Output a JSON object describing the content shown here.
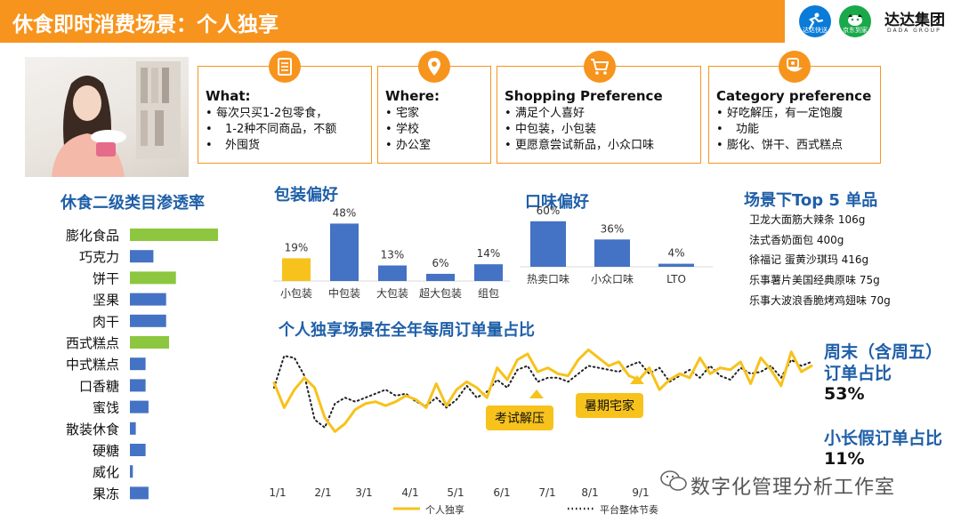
{
  "header": {
    "title": "休食即时消费场景：个人独享",
    "logos": [
      {
        "name": "dada-kuaisong-logo",
        "label": "达达快送",
        "color": "#0a7bd8"
      },
      {
        "name": "jd-daojia-logo",
        "label": "京东到家",
        "color": "#19a94a"
      }
    ],
    "brand": "达达集团",
    "brand_sub": "DADA GROUP"
  },
  "cards": [
    {
      "title": "What:",
      "icon": "document-icon",
      "items": [
        "每次只买1-2包零食，",
        "1-2种不同商品，不额",
        "外囤货"
      ]
    },
    {
      "title": "Where:",
      "icon": "location-pin-icon",
      "items": [
        "宅家",
        "学校",
        "办公室"
      ]
    },
    {
      "title": "Shopping Preference",
      "icon": "shopping-cart-icon",
      "items": [
        "满足个人喜好",
        "中包装，小包装",
        "更愿意尝试新品，小众口味"
      ]
    },
    {
      "title": "Category preference",
      "icon": "food-bowl-icon",
      "items": [
        "好吃解压，有一定饱腹",
        "功能",
        "膨化、饼干、西式糕点"
      ]
    }
  ],
  "penetration": {
    "title": "休食二级类目渗透率",
    "chart_data": {
      "type": "bar",
      "orientation": "horizontal",
      "categories": [
        "膨化食品",
        "巧克力",
        "饼干",
        "坚果",
        "肉干",
        "西式糕点",
        "中式糕点",
        "口香糖",
        "蜜饯",
        "散装休食",
        "硬糖",
        "威化",
        "果冻"
      ],
      "values": [
        90,
        24,
        47,
        37,
        37,
        40,
        16,
        16,
        19,
        6,
        16,
        3,
        19
      ],
      "highlighted": [
        true,
        false,
        true,
        false,
        false,
        true,
        false,
        false,
        false,
        false,
        false,
        false,
        false
      ],
      "colors": {
        "highlight": "#8dc63f",
        "normal": "#4472c4"
      },
      "xlim": [
        0,
        100
      ]
    }
  },
  "packaging": {
    "title": "包装偏好",
    "chart_data": {
      "type": "bar",
      "categories": [
        "小包装",
        "中包装",
        "大包装",
        "超大包装",
        "组包"
      ],
      "values": [
        19,
        48,
        13,
        6,
        14
      ],
      "labels": [
        "19%",
        "48%",
        "13%",
        "6%",
        "14%"
      ],
      "highlighted": [
        true,
        false,
        false,
        false,
        false
      ],
      "colors": {
        "highlight": "#f7c21c",
        "normal": "#4472c4"
      },
      "ylim": [
        0,
        55
      ]
    }
  },
  "flavor": {
    "title": "口味偏好",
    "chart_data": {
      "type": "bar",
      "categories": [
        "热卖口味",
        "小众口味",
        "LTO"
      ],
      "values": [
        60,
        36,
        4
      ],
      "labels": [
        "60%",
        "36%",
        "4%"
      ],
      "colors": {
        "normal": "#4472c4"
      },
      "ylim": [
        0,
        68
      ]
    }
  },
  "top5": {
    "title": "场景下Top 5 单品",
    "items": [
      "卫龙大面筋大辣条 106g",
      "法式香奶面包 400g",
      "徐福记 蛋黄沙琪玛 416g",
      "乐事薯片美国经典原味 75g",
      "乐事大波浪香脆烤鸡翅味 70g"
    ]
  },
  "weekly": {
    "title": "个人独享场景在全年每周订单量占比",
    "chart_data": {
      "type": "line",
      "x_ticks": [
        "1/1",
        "2/1",
        "3/1",
        "4/1",
        "5/1",
        "6/1",
        "7/1",
        "8/1",
        "9/1"
      ],
      "x_range": [
        0,
        44
      ],
      "ylim": [
        0,
        100
      ],
      "series": [
        {
          "name": "个人独享",
          "style": "solid",
          "color": "#f7c21c",
          "values": [
            55,
            30,
            48,
            60,
            50,
            20,
            6,
            14,
            28,
            34,
            36,
            32,
            36,
            42,
            38,
            30,
            54,
            32,
            48,
            56,
            50,
            40,
            70,
            58,
            78,
            84,
            66,
            70,
            64,
            62,
            78,
            88,
            80,
            72,
            76,
            62,
            58,
            70,
            48,
            58,
            64,
            60,
            80,
            64,
            70,
            68,
            76,
            54,
            80,
            68,
            52,
            86,
            66,
            72
          ]
        },
        {
          "name": "平台整体节奏",
          "style": "dotted",
          "color": "#222222",
          "values": [
            50,
            82,
            80,
            62,
            18,
            10,
            34,
            40,
            36,
            40,
            44,
            48,
            42,
            44,
            36,
            32,
            40,
            30,
            38,
            52,
            40,
            46,
            58,
            50,
            68,
            72,
            56,
            60,
            60,
            56,
            64,
            72,
            70,
            68,
            66,
            72,
            76,
            64,
            70,
            56,
            62,
            68,
            60,
            72,
            62,
            58,
            70,
            64,
            66,
            72,
            60,
            78,
            72,
            76
          ]
        }
      ],
      "annotations": [
        {
          "text": "考试解压",
          "x": 22,
          "y": 35
        },
        {
          "text": "暑期宅家",
          "x": 31,
          "y": 52
        }
      ]
    },
    "weekend": {
      "line1": "周末（含周五）",
      "line2": "订单占比",
      "value": "53%"
    },
    "holiday": {
      "label": "小长假订单占比",
      "value": "11%"
    }
  },
  "watermark": "数字化管理分析工作室"
}
